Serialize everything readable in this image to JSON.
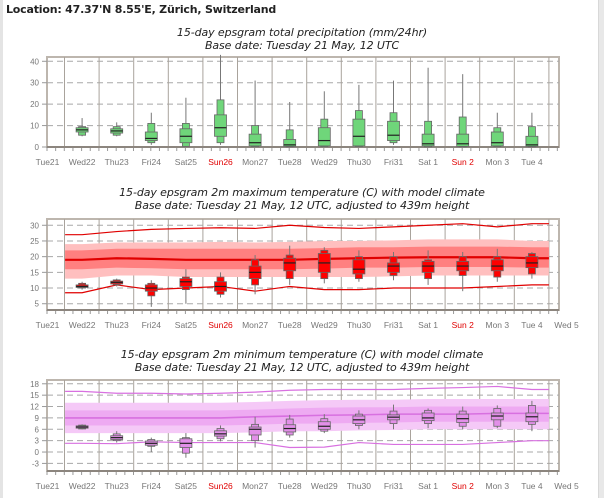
{
  "location": "Location: 47.37'N 8.55'E, Zürich, Switzerland",
  "colors": {
    "precip_box": "#6fd67a",
    "max_box": "#ff0000",
    "max_band_outer": "#ffbfbf",
    "max_band_inner": "#ff8080",
    "max_line": "#e00000",
    "min_box": "#e28fe8",
    "min_band_outer": "#f5c9f7",
    "min_band_inner": "#eeaaf2",
    "min_line": "#d870e0",
    "sunday_label": "#e00000",
    "axis_label": "#777777"
  },
  "chart_data": [
    {
      "id": "precip",
      "type": "boxplot",
      "title": "15-day epsgram total precipitation (mm/24hr)",
      "subtitle": "Base date: Tuesday 21 May, 12 UTC",
      "xlabel": "",
      "ylabel": "",
      "ylim": [
        0,
        42
      ],
      "yticks": [
        0,
        10,
        20,
        30,
        40
      ],
      "grid": true,
      "day_labels": [
        "Tue21",
        "Wed22",
        "Thu23",
        "Fri24",
        "Sat25",
        "Sun26",
        "Mon27",
        "Tue28",
        "Wed29",
        "Thu30",
        "Fri31",
        "Sat 1",
        "Sun 2",
        "Mon 3",
        "Tue 4"
      ],
      "sunday_indices": [
        5,
        12
      ],
      "boxes": [
        {
          "day": "Wed22",
          "min": 5,
          "p10": 5.5,
          "p25": 7,
          "median": 8,
          "p75": 9,
          "p90": 9.5,
          "max": 13.5
        },
        {
          "day": "Thu23",
          "min": 5,
          "p10": 5.5,
          "p25": 6.5,
          "median": 7.5,
          "p75": 8.5,
          "p90": 9.5,
          "max": 11.5
        },
        {
          "day": "Fri24",
          "min": 1,
          "p10": 2,
          "p25": 3,
          "median": 4,
          "p75": 7,
          "p90": 11,
          "max": 16
        },
        {
          "day": "Sat25",
          "min": 0,
          "p10": 0.3,
          "p25": 2,
          "median": 5,
          "p75": 8.5,
          "p90": 11,
          "max": 23
        },
        {
          "day": "Sun26",
          "min": 1,
          "p10": 2,
          "p25": 5,
          "median": 9,
          "p75": 15,
          "p90": 22,
          "max": 43
        },
        {
          "day": "Mon27",
          "min": 0,
          "p10": 0.2,
          "p25": 0.5,
          "median": 2,
          "p75": 6,
          "p90": 10,
          "max": 31
        },
        {
          "day": "Tue28",
          "min": 0,
          "p10": 0.1,
          "p25": 0.3,
          "median": 1,
          "p75": 3.5,
          "p90": 8,
          "max": 21
        },
        {
          "day": "Wed29",
          "min": 0,
          "p10": 0.2,
          "p25": 0.5,
          "median": 3,
          "p75": 9,
          "p90": 13,
          "max": 26
        },
        {
          "day": "Thu30",
          "min": 0,
          "p10": 0.2,
          "p25": 0.5,
          "median": 5,
          "p75": 13,
          "p90": 17,
          "max": 29
        },
        {
          "day": "Fri31",
          "min": 1,
          "p10": 2,
          "p25": 3,
          "median": 5.5,
          "p75": 12,
          "p90": 16,
          "max": 31
        },
        {
          "day": "Sat 1",
          "min": 0,
          "p10": 0.1,
          "p25": 0.5,
          "median": 1.5,
          "p75": 6,
          "p90": 12,
          "max": 37
        },
        {
          "day": "Sun 2",
          "min": 0,
          "p10": 0.1,
          "p25": 0.3,
          "median": 1.5,
          "p75": 6,
          "p90": 14,
          "max": 34
        },
        {
          "day": "Mon 3",
          "min": 0,
          "p10": 0.2,
          "p25": 0.5,
          "median": 2,
          "p75": 7,
          "p90": 9,
          "max": 16
        },
        {
          "day": "Tue 4",
          "min": 0,
          "p10": 0.1,
          "p25": 0.3,
          "median": 1,
          "p75": 5,
          "p90": 9.5,
          "max": 16
        }
      ]
    },
    {
      "id": "tmax",
      "type": "boxplot",
      "title": "15-day epsgram 2m maximum temperature (C) with model climate",
      "subtitle": "Base date: Tuesday 21 May, 12 UTC, adjusted to 439m height",
      "xlabel": "",
      "ylabel": "",
      "ylim": [
        3,
        32
      ],
      "yticks": [
        5,
        10,
        15,
        20,
        25,
        30
      ],
      "grid": true,
      "day_labels": [
        "Tue21",
        "Wed22",
        "Thu23",
        "Fri24",
        "Sat25",
        "Sun26",
        "Mon27",
        "Tue28",
        "Wed29",
        "Thu30",
        "Fri31",
        "Sat 1",
        "Sun 2",
        "Mon 3",
        "Tue 4",
        "Wed 5"
      ],
      "sunday_indices": [
        5,
        12
      ],
      "climate": {
        "days": [
          "Wed22",
          "Thu23",
          "Fri24",
          "Sat25",
          "Sun26",
          "Mon27",
          "Tue28",
          "Wed29",
          "Thu30",
          "Fri31",
          "Sat 1",
          "Sun 2",
          "Mon 3",
          "Tue 4"
        ],
        "max": [
          27,
          28,
          28.7,
          29,
          29.2,
          29,
          30,
          29.3,
          29,
          29.5,
          30,
          30.5,
          29.5,
          30.5
        ],
        "p90": [
          24,
          24.5,
          24.5,
          24.5,
          24.7,
          24.5,
          24.7,
          25,
          25,
          25.2,
          25.5,
          25.5,
          25.5,
          25
        ],
        "p75": [
          22,
          22.5,
          22.5,
          22.5,
          22.5,
          22.5,
          22.5,
          22.7,
          23,
          23,
          23.2,
          23.2,
          23.2,
          23
        ],
        "median": [
          19,
          19.5,
          19.3,
          19,
          19,
          19,
          19,
          19.3,
          19.5,
          19.7,
          19.8,
          19.8,
          19.8,
          19.5
        ],
        "p25": [
          16,
          16.5,
          16.3,
          16,
          16,
          16,
          16,
          16.2,
          16.5,
          16.5,
          16.7,
          16.7,
          16.7,
          16.5
        ],
        "p10": [
          13,
          14,
          14,
          13.5,
          13.5,
          13.5,
          13.5,
          13.5,
          13.5,
          13.7,
          14,
          14,
          14,
          14
        ],
        "min": [
          8.5,
          11,
          9.5,
          10,
          10.5,
          9,
          10.5,
          9.5,
          9.5,
          10,
          10,
          10,
          10.5,
          11
        ]
      },
      "boxes": [
        {
          "day": "Wed22",
          "min": 9.5,
          "p10": 10,
          "p25": 10.2,
          "median": 10.5,
          "p75": 11,
          "p90": 11.5,
          "max": 12
        },
        {
          "day": "Thu23",
          "min": 10.5,
          "p10": 11,
          "p25": 11.3,
          "median": 11.8,
          "p75": 12.2,
          "p90": 12.6,
          "max": 13
        },
        {
          "day": "Fri24",
          "min": 4,
          "p10": 7.5,
          "p25": 9,
          "median": 10,
          "p75": 11,
          "p90": 11.5,
          "max": 12.5
        },
        {
          "day": "Sat25",
          "min": 5,
          "p10": 9.5,
          "p25": 10.5,
          "median": 12,
          "p75": 13,
          "p90": 13.5,
          "max": 16
        },
        {
          "day": "Sun26",
          "min": 7,
          "p10": 8,
          "p25": 9,
          "median": 10.5,
          "p75": 12,
          "p90": 13.5,
          "max": 15
        },
        {
          "day": "Mon27",
          "min": 8,
          "p10": 11,
          "p25": 13,
          "median": 15,
          "p75": 17,
          "p90": 19,
          "max": 20.5
        },
        {
          "day": "Tue28",
          "min": 11,
          "p10": 13,
          "p25": 15.5,
          "median": 18,
          "p75": 19.5,
          "p90": 20.5,
          "max": 23.5
        },
        {
          "day": "Wed29",
          "min": 11.5,
          "p10": 13,
          "p25": 15,
          "median": 18,
          "p75": 21,
          "p90": 22,
          "max": 23
        },
        {
          "day": "Thu30",
          "min": 12,
          "p10": 13,
          "p25": 14.5,
          "median": 16,
          "p75": 19,
          "p90": 20,
          "max": 22
        },
        {
          "day": "Fri31",
          "min": 12.5,
          "p10": 14,
          "p25": 15,
          "median": 17,
          "p75": 18,
          "p90": 20,
          "max": 21.5
        },
        {
          "day": "Sat 1",
          "min": 11,
          "p10": 13,
          "p25": 15,
          "median": 17,
          "p75": 18.5,
          "p90": 19,
          "max": 22
        },
        {
          "day": "Sun 2",
          "min": 9,
          "p10": 14,
          "p25": 15.5,
          "median": 17,
          "p75": 18.5,
          "p90": 20,
          "max": 21.5
        },
        {
          "day": "Mon 3",
          "min": 12,
          "p10": 13.5,
          "p25": 15.5,
          "median": 17,
          "p75": 19,
          "p90": 20,
          "max": 22.5
        },
        {
          "day": "Tue 4",
          "min": 13,
          "p10": 14.5,
          "p25": 16.5,
          "median": 18,
          "p75": 20,
          "p90": 21,
          "max": 21.5
        }
      ]
    },
    {
      "id": "tmin",
      "type": "boxplot",
      "title": "15-day epsgram 2m minimum temperature (C) with model climate",
      "subtitle": "Base date: Tuesday 21 May, 12 UTC, adjusted to 439m height",
      "xlabel": "",
      "ylabel": "",
      "ylim": [
        -5,
        19
      ],
      "yticks": [
        -3,
        0,
        3,
        6,
        9,
        12,
        15,
        18
      ],
      "grid": true,
      "day_labels": [
        "Tue21",
        "Wed22",
        "Thu23",
        "Fri24",
        "Sat25",
        "Sun26",
        "Mon27",
        "Tue28",
        "Wed29",
        "Thu30",
        "Fri31",
        "Sat 1",
        "Sun 2",
        "Mon 3",
        "Tue 4",
        "Wed 5"
      ],
      "sunday_indices": [
        5,
        12
      ],
      "climate": {
        "days": [
          "Wed22",
          "Thu23",
          "Fri24",
          "Sat25",
          "Sun26",
          "Mon27",
          "Tue28",
          "Wed29",
          "Thu30",
          "Fri31",
          "Sat 1",
          "Sun 2",
          "Mon 3",
          "Tue 4"
        ],
        "max": [
          16,
          15.5,
          15.5,
          15.3,
          15.5,
          15.8,
          16.3,
          16.5,
          16.5,
          16.5,
          16.8,
          17,
          17.3,
          16.5
        ],
        "p90": [
          13,
          13,
          13,
          13,
          13,
          13.2,
          13.5,
          13.7,
          13.8,
          13.8,
          14,
          14,
          14,
          14
        ],
        "p75": [
          11,
          11,
          11,
          11,
          11,
          11.2,
          11.5,
          11.7,
          11.8,
          11.8,
          12,
          12,
          12,
          12
        ],
        "median": [
          9,
          9,
          9,
          9,
          9,
          9.3,
          9.5,
          9.7,
          9.8,
          10,
          10,
          10,
          10.2,
          10.2
        ],
        "p25": [
          7,
          7,
          7,
          7,
          7,
          7.2,
          7.5,
          7.5,
          7.7,
          7.8,
          8,
          8,
          8,
          8
        ],
        "p10": [
          5,
          5,
          5,
          5,
          5,
          5.2,
          5.5,
          5.5,
          5.7,
          5.8,
          6,
          6,
          6,
          6
        ],
        "min": [
          2.3,
          2.2,
          2.7,
          2.5,
          2.5,
          2.5,
          1.2,
          1.3,
          2.5,
          2,
          2,
          2,
          2.5,
          3
        ]
      },
      "boxes": [
        {
          "day": "Wed22",
          "min": 6,
          "p10": 6.1,
          "p25": 6.3,
          "median": 6.6,
          "p75": 6.9,
          "p90": 7.1,
          "max": 7.3
        },
        {
          "day": "Thu23",
          "min": 2.5,
          "p10": 3,
          "p25": 3.3,
          "median": 3.8,
          "p75": 4.3,
          "p90": 4.8,
          "max": 5.5
        },
        {
          "day": "Fri24",
          "min": 0,
          "p10": 1.5,
          "p25": 1.8,
          "median": 2.3,
          "p75": 2.9,
          "p90": 3.3,
          "max": 3.8
        },
        {
          "day": "Sat25",
          "min": -1.5,
          "p10": -0.3,
          "p25": 1.2,
          "median": 2.3,
          "p75": 3.5,
          "p90": 3.8,
          "max": 5
        },
        {
          "day": "Sun26",
          "min": 2.8,
          "p10": 3.5,
          "p25": 4.2,
          "median": 4.8,
          "p75": 5.6,
          "p90": 6.2,
          "max": 7
        },
        {
          "day": "Mon27",
          "min": 1.2,
          "p10": 3,
          "p25": 4.5,
          "median": 6,
          "p75": 6.6,
          "p90": 7.3,
          "max": 9.3
        },
        {
          "day": "Tue28",
          "min": 3.8,
          "p10": 4.5,
          "p25": 5.3,
          "median": 6.2,
          "p75": 7.2,
          "p90": 8.7,
          "max": 9.8
        },
        {
          "day": "Wed29",
          "min": 5,
          "p10": 5.5,
          "p25": 6,
          "median": 6.8,
          "p75": 8,
          "p90": 8.8,
          "max": 10
        },
        {
          "day": "Thu30",
          "min": 6,
          "p10": 7,
          "p25": 7.5,
          "median": 8.5,
          "p75": 9.5,
          "p90": 10,
          "max": 11
        },
        {
          "day": "Fri31",
          "min": 6,
          "p10": 7.5,
          "p25": 8.5,
          "median": 9.2,
          "p75": 9.8,
          "p90": 10.8,
          "max": 12.5
        },
        {
          "day": "Sat 1",
          "min": 6.3,
          "p10": 7.5,
          "p25": 8.3,
          "median": 9,
          "p75": 10.3,
          "p90": 11,
          "max": 11.5
        },
        {
          "day": "Sun 2",
          "min": 6,
          "p10": 6.8,
          "p25": 7.8,
          "median": 8.8,
          "p75": 10,
          "p90": 10.8,
          "max": 12
        },
        {
          "day": "Mon 3",
          "min": 6.3,
          "p10": 6.8,
          "p25": 8.5,
          "median": 9.5,
          "p75": 10.3,
          "p90": 11.5,
          "max": 12.3
        },
        {
          "day": "Tue 4",
          "min": 5.5,
          "p10": 7.3,
          "p25": 8,
          "median": 9.3,
          "p75": 10.3,
          "p90": 12.3,
          "max": 13.5
        }
      ]
    }
  ]
}
